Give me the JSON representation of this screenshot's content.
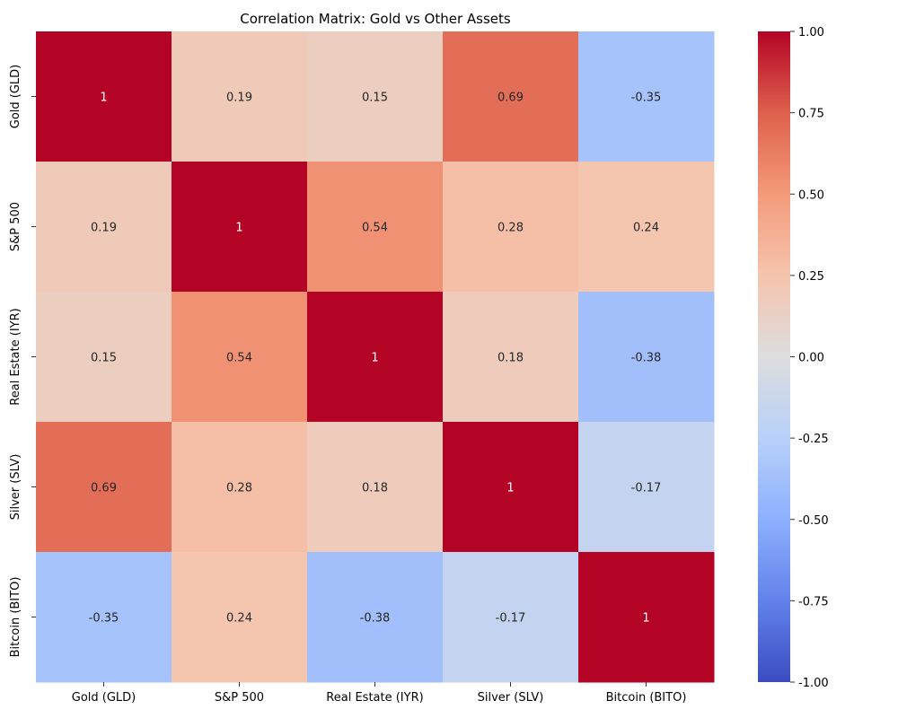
{
  "chart_data": {
    "type": "heatmap",
    "title": "Correlation Matrix: Gold vs Other Assets",
    "row_labels": [
      "Gold (GLD)",
      "S&P 500",
      "Real Estate (IYR)",
      "Silver (SLV)",
      "Bitcoin (BITO)"
    ],
    "col_labels": [
      "Gold (GLD)",
      "S&P 500",
      "Real Estate (IYR)",
      "Silver (SLV)",
      "Bitcoin (BITO)"
    ],
    "values": [
      [
        1,
        0.19,
        0.15,
        0.69,
        -0.35
      ],
      [
        0.19,
        1,
        0.54,
        0.28,
        0.24
      ],
      [
        0.15,
        0.54,
        1,
        0.18,
        -0.38
      ],
      [
        0.69,
        0.28,
        0.18,
        1,
        -0.17
      ],
      [
        -0.35,
        0.24,
        -0.38,
        -0.17,
        1
      ]
    ],
    "annotations": [
      [
        "1",
        "0.19",
        "0.15",
        "0.69",
        "-0.35"
      ],
      [
        "0.19",
        "1",
        "0.54",
        "0.28",
        "0.24"
      ],
      [
        "0.15",
        "0.54",
        "1",
        "0.18",
        "-0.38"
      ],
      [
        "0.69",
        "0.28",
        "0.18",
        "1",
        "-0.17"
      ],
      [
        "-0.35",
        "0.24",
        "-0.38",
        "-0.17",
        "1"
      ]
    ],
    "colormap": "coolwarm",
    "vmin": -1,
    "vmax": 1,
    "colorbar_ticks": [
      "-1.00",
      "-0.75",
      "-0.50",
      "-0.25",
      "0.00",
      "0.25",
      "0.50",
      "0.75",
      "1.00"
    ],
    "colors": {
      "low": "#3b4cc0",
      "mid": "#dddddd",
      "high": "#b40426"
    }
  }
}
